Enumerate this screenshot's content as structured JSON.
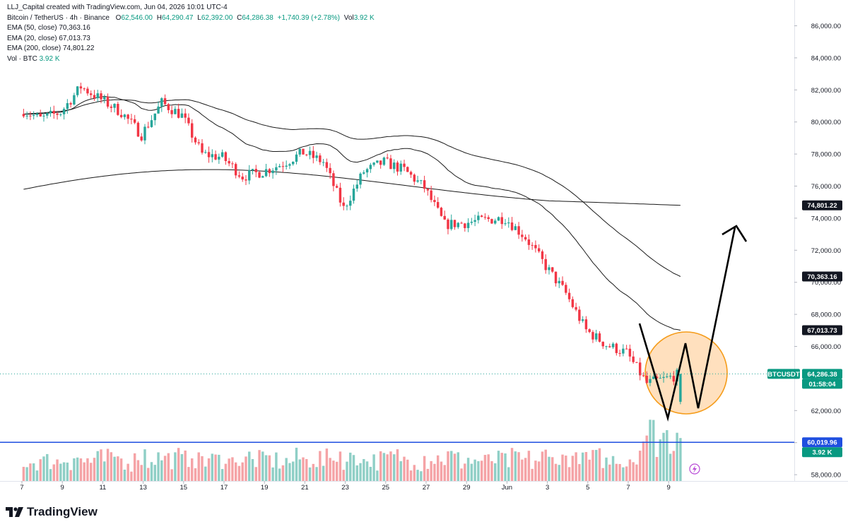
{
  "header": {
    "attribution": "LLJ_Capital created with TradingView.com, Jun 04, 2026 10:01 UTC-4",
    "symbol": "Bitcoin / TetherUS · 4h · Binance",
    "ohlc": {
      "o_label": "O",
      "o": "62,546.00",
      "h_label": "H",
      "h": "64,290.47",
      "l_label": "L",
      "l": "62,392.00",
      "c_label": "C",
      "c": "64,286.38",
      "change": "+1,740.39 (+2.78%)",
      "vol_label": "Vol",
      "vol": "3.92 K"
    },
    "indicators": [
      {
        "label": "EMA (50, close)",
        "value": "70,363.16"
      },
      {
        "label": "EMA (20, close)",
        "value": "67,013.73"
      },
      {
        "label": "EMA (200, close)",
        "value": "74,801.22"
      },
      {
        "label": "Vol · BTC",
        "value": "3.92 K"
      }
    ]
  },
  "brand": {
    "name": "TradingView"
  },
  "colors": {
    "up": "#26a69a",
    "down": "#f23645",
    "vol_up": "#8fcfc6",
    "vol_down": "#f5a3a6",
    "ema": "#1a1a1a",
    "support": "#1f4fe0",
    "circle_fill": "#ffd6a8",
    "circle_stroke": "#f59c1a"
  },
  "chart_data": {
    "type": "candlestick",
    "y_axis_ticks": [
      "86,000.00",
      "84,000.00",
      "82,000.00",
      "80,000.00",
      "78,000.00",
      "76,000.00",
      "74,000.00",
      "72,000.00",
      "70,000.00",
      "68,000.00",
      "66,000.00",
      "64,000.00",
      "62,000.00",
      "60,000.00",
      "58,000.00"
    ],
    "ylim": [
      57800,
      86400
    ],
    "x_axis_ticks": [
      "7",
      "9",
      "11",
      "13",
      "15",
      "17",
      "19",
      "21",
      "23",
      "25",
      "27",
      "29",
      "Jun",
      "3",
      "5",
      "7",
      "9"
    ],
    "price_tags": [
      {
        "name": "EMA 200",
        "value": 74801.22,
        "label": "74,801.22"
      },
      {
        "name": "EMA 50",
        "value": 70363.16,
        "label": "70,363.16"
      },
      {
        "name": "EMA 20",
        "value": 67013.73,
        "label": "67,013.73"
      },
      {
        "name": "BTCUSDT",
        "value": 64286.38,
        "label": "64,286.38",
        "countdown": "01:58:04"
      },
      {
        "name": "support",
        "value": 60019.96,
        "label": "60,019.96"
      },
      {
        "name": "volume",
        "label": "3.92 K"
      }
    ],
    "symbol_tag": "BTCUSDT",
    "support_level": 60019.96,
    "last_price": 64286.38,
    "anchors": [
      {
        "day": 7,
        "close": 80800
      },
      {
        "day": 8,
        "close": 80200
      },
      {
        "day": 9,
        "close": 80600
      },
      {
        "day": 10,
        "close": 82200
      },
      {
        "day": 11,
        "close": 81400
      },
      {
        "day": 12,
        "close": 80600
      },
      {
        "day": 13,
        "close": 79200
      },
      {
        "day": 14,
        "close": 81200
      },
      {
        "day": 15,
        "close": 80400
      },
      {
        "day": 16,
        "close": 78000
      },
      {
        "day": 17,
        "close": 77800
      },
      {
        "day": 18,
        "close": 76600
      },
      {
        "day": 19,
        "close": 76900
      },
      {
        "day": 20,
        "close": 77400
      },
      {
        "day": 21,
        "close": 78100
      },
      {
        "day": 22,
        "close": 77500
      },
      {
        "day": 23,
        "close": 74600
      },
      {
        "day": 24,
        "close": 76900
      },
      {
        "day": 25,
        "close": 77500
      },
      {
        "day": 26,
        "close": 77000
      },
      {
        "day": 27,
        "close": 75900
      },
      {
        "day": 28,
        "close": 73600
      },
      {
        "day": 29,
        "close": 73700
      },
      {
        "day": 30,
        "close": 73900
      },
      {
        "day": 31,
        "close": 74000
      },
      {
        "day": 32,
        "close": 72800
      },
      {
        "day": 33,
        "close": 71000
      },
      {
        "day": 34,
        "close": 69300
      },
      {
        "day": 35,
        "close": 67000
      },
      {
        "day": 36,
        "close": 66100
      },
      {
        "day": 37,
        "close": 65600
      },
      {
        "day": 38,
        "close": 63700
      },
      {
        "day": 39,
        "close": 64000
      },
      {
        "day": 39.6,
        "close": 64286
      }
    ],
    "ema_final": {
      "ema20": 67013.73,
      "ema50": 70363.16,
      "ema200": 74801.22
    }
  }
}
